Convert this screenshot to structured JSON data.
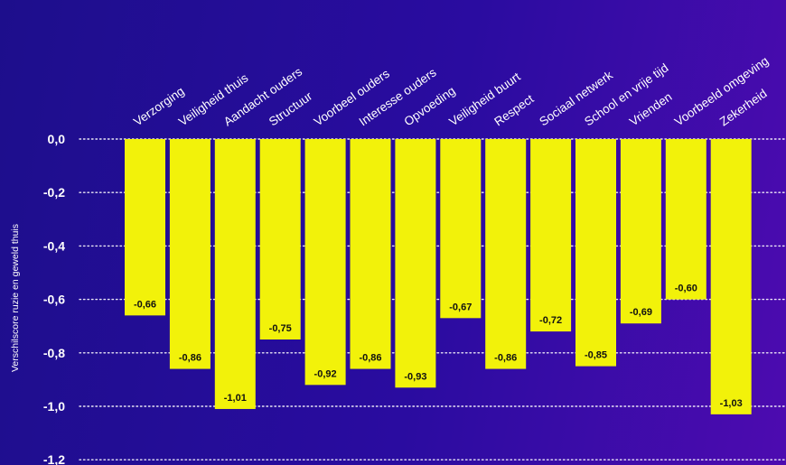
{
  "chart_data": {
    "type": "bar",
    "ylabel": "Verschilscore ruzie en geweld thuis",
    "ylim": [
      -1.2,
      0.0
    ],
    "yticks": [
      0.0,
      -0.2,
      -0.4,
      -0.6,
      -0.8,
      -1.0,
      -1.2
    ],
    "ytick_labels": [
      "0,0",
      "-0,2",
      "-0,4",
      "-0,6",
      "-0,8",
      "-1,0",
      "-1,2"
    ],
    "grid": true,
    "categories": [
      "Verzorging",
      "Veiligheid thuis",
      "Aandacht ouders",
      "Structuur",
      "Voorbeel ouders",
      "Interesse ouders",
      "Opvoeding",
      "Veiligheid buurt",
      "Respect",
      "Sociaal netwerk",
      "School en vrije tijd",
      "Vrienden",
      "Voorbeeld omgeving",
      "Zekerheid"
    ],
    "values": [
      -0.66,
      -0.86,
      -1.01,
      -0.75,
      -0.92,
      -0.86,
      -0.93,
      -0.67,
      -0.86,
      -0.72,
      -0.85,
      -0.69,
      -0.6,
      -1.03
    ],
    "value_labels": [
      "-0,66",
      "-0,86",
      "-1,01",
      "-0,75",
      "-0,92",
      "-0,86",
      "-0,93",
      "-0,67",
      "-0,86",
      "-0,72",
      "-0,85",
      "-0,69",
      "-0,60",
      "-1,03"
    ]
  },
  "colors": {
    "bar": "#f2f20a",
    "text": "#ffffff",
    "label": "#111111",
    "grid": "#ffffff"
  }
}
